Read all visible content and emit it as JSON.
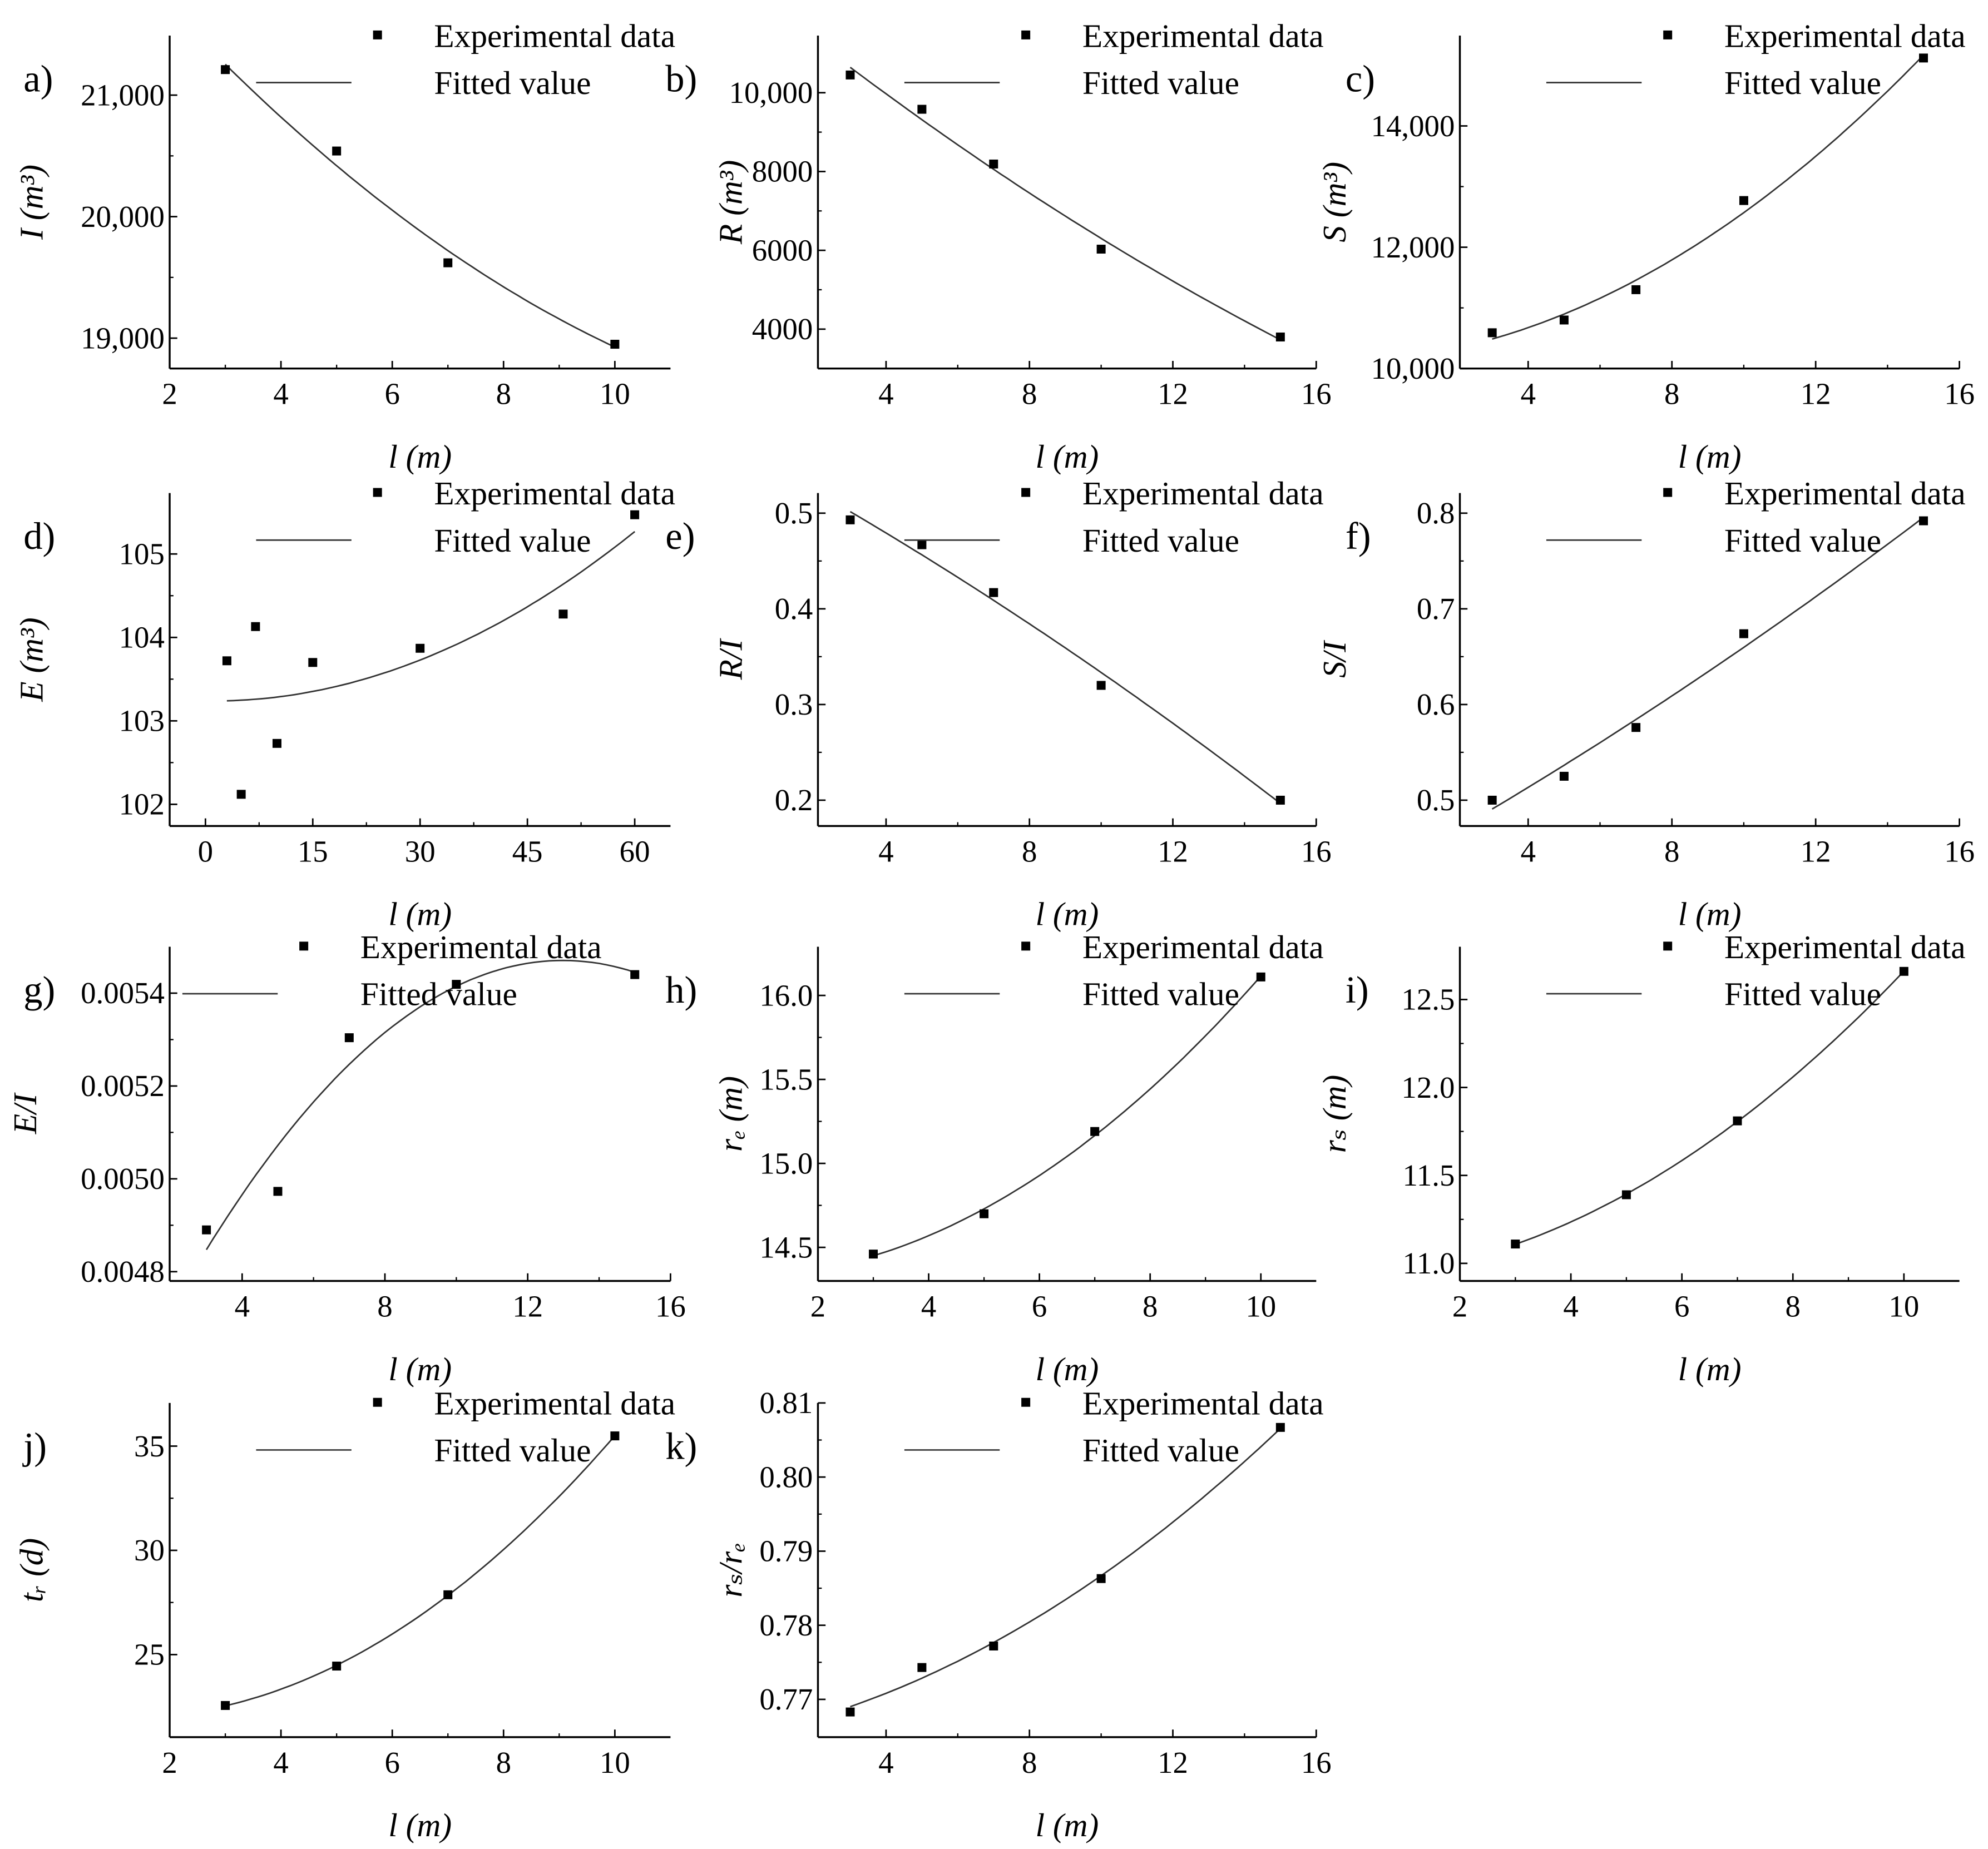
{
  "chart_data": [
    {
      "panel": "a)",
      "type": "scatter+fit",
      "xlabel": "l (m)",
      "ylabel": "I (m³)",
      "xlim": [
        2,
        11
      ],
      "ylim": [
        18750,
        21490
      ],
      "xticks": [
        2,
        4,
        6,
        8,
        10
      ],
      "yticks": [
        19000,
        20000,
        21000
      ],
      "ytick_labels": [
        "19,000",
        "20,000",
        "21,000"
      ],
      "x": [
        3,
        5,
        7,
        10
      ],
      "y": [
        21210,
        20540,
        19620,
        18950
      ],
      "legend": [
        "Experimental data",
        "Fitted value"
      ]
    },
    {
      "panel": "b)",
      "type": "scatter+fit",
      "xlabel": "l (m)",
      "ylabel": "R (m³)",
      "xlim": [
        2.1,
        16
      ],
      "ylim": [
        3000,
        11450
      ],
      "xticks": [
        4,
        8,
        12,
        16
      ],
      "yticks": [
        4000,
        6000,
        8000,
        10000
      ],
      "ytick_labels": [
        "4000",
        "6000",
        "8000",
        "10,000"
      ],
      "x": [
        3,
        5,
        7,
        10,
        15
      ],
      "y": [
        10450,
        9580,
        8190,
        6030,
        3800
      ],
      "legend": [
        "Experimental data",
        "Fitted value"
      ]
    },
    {
      "panel": "c)",
      "type": "scatter+fit",
      "xlabel": "l (m)",
      "ylabel": "S (m³)",
      "xlim": [
        2.1,
        16
      ],
      "ylim": [
        10000,
        15490
      ],
      "xticks": [
        4,
        8,
        12,
        16
      ],
      "yticks": [
        10000,
        12000,
        14000
      ],
      "ytick_labels": [
        "10,000",
        "12,000",
        "14,000"
      ],
      "x": [
        3,
        5,
        7,
        10,
        15
      ],
      "y": [
        10590,
        10800,
        11300,
        12770,
        15120
      ],
      "legend": [
        "Experimental data",
        "Fitted value"
      ]
    },
    {
      "panel": "d)",
      "type": "scatter+fit",
      "xlabel": "l (m)",
      "ylabel": "E (m³)",
      "xlim": [
        -5,
        65
      ],
      "ylim": [
        101.74,
        105.73
      ],
      "xticks": [
        0,
        15,
        30,
        45,
        60
      ],
      "yticks": [
        102,
        103,
        104,
        105
      ],
      "ytick_labels": [
        "102",
        "103",
        "104",
        "105"
      ],
      "x": [
        3,
        5,
        7,
        10,
        15,
        30,
        50,
        60
      ],
      "y": [
        103.72,
        102.12,
        104.13,
        102.73,
        103.7,
        103.87,
        104.28,
        105.47
      ],
      "legend": [
        "Experimental data",
        "Fitted value"
      ]
    },
    {
      "panel": "e)",
      "type": "scatter+fit",
      "xlabel": "l (m)",
      "ylabel": "R/I",
      "xlim": [
        2.1,
        16
      ],
      "ylim": [
        0.173,
        0.521
      ],
      "xticks": [
        4,
        8,
        12,
        16
      ],
      "yticks": [
        0.2,
        0.3,
        0.4,
        0.5
      ],
      "ytick_labels": [
        "0.2",
        "0.3",
        "0.4",
        "0.5"
      ],
      "x": [
        3,
        5,
        7,
        10,
        15
      ],
      "y": [
        0.493,
        0.467,
        0.417,
        0.32,
        0.2
      ],
      "legend": [
        "Experimental data",
        "Fitted value"
      ]
    },
    {
      "panel": "f)",
      "type": "scatter+fit",
      "xlabel": "l (m)",
      "ylabel": "S/I",
      "xlim": [
        2.1,
        16
      ],
      "ylim": [
        0.473,
        0.821
      ],
      "xticks": [
        4,
        8,
        12,
        16
      ],
      "yticks": [
        0.5,
        0.6,
        0.7,
        0.8
      ],
      "ytick_labels": [
        "0.5",
        "0.6",
        "0.7",
        "0.8"
      ],
      "x": [
        3,
        5,
        7,
        10,
        15
      ],
      "y": [
        0.5,
        0.525,
        0.576,
        0.674,
        0.792
      ],
      "legend": [
        "Experimental data",
        "Fitted value"
      ]
    },
    {
      "panel": "g)",
      "type": "scatter+fit",
      "xlabel": "l (m)",
      "ylabel": "E/I",
      "xlim": [
        1.97,
        16
      ],
      "ylim": [
        0.00478,
        0.0055
      ],
      "xticks": [
        4,
        8,
        12,
        16
      ],
      "yticks": [
        0.0048,
        0.005,
        0.0052,
        0.0054
      ],
      "ytick_labels": [
        "0.0048",
        "0.0050",
        "0.0052",
        "0.0054"
      ],
      "x": [
        3,
        5,
        7,
        10,
        15
      ],
      "y": [
        0.00489,
        0.004973,
        0.005304,
        0.005419,
        0.00544
      ],
      "legend": [
        "Experimental data",
        "Fitted value"
      ]
    },
    {
      "panel": "h)",
      "type": "scatter+fit",
      "xlabel": "l (m)",
      "ylabel": "rₑ (m)",
      "xlim": [
        2,
        11
      ],
      "ylim": [
        14.3,
        16.29
      ],
      "xticks": [
        2,
        4,
        6,
        8,
        10
      ],
      "yticks": [
        14.5,
        15,
        15.5,
        16
      ],
      "ytick_labels": [
        "14.5",
        "15.0",
        "15.5",
        "16.0"
      ],
      "x": [
        3,
        5,
        7,
        10
      ],
      "y": [
        14.46,
        14.7,
        15.19,
        16.11
      ],
      "legend": [
        "Experimental data",
        "Fitted value"
      ]
    },
    {
      "panel": "i)",
      "type": "scatter+fit",
      "xlabel": "l (m)",
      "ylabel": "rₛ (m)",
      "xlim": [
        2,
        11
      ],
      "ylim": [
        10.9,
        12.8
      ],
      "xticks": [
        2,
        4,
        6,
        8,
        10
      ],
      "yticks": [
        11,
        11.5,
        12,
        12.5
      ],
      "ytick_labels": [
        "11.0",
        "11.5",
        "12.0",
        "12.5"
      ],
      "x": [
        3,
        5,
        7,
        10
      ],
      "y": [
        11.11,
        11.39,
        11.81,
        12.66
      ],
      "legend": [
        "Experimental data",
        "Fitted value"
      ]
    },
    {
      "panel": "j)",
      "type": "scatter+fit",
      "xlabel": "l (m)",
      "ylabel": "tᵣ (d)",
      "xlim": [
        2,
        11
      ],
      "ylim": [
        21.04,
        37.07
      ],
      "xticks": [
        2,
        4,
        6,
        8,
        10
      ],
      "yticks": [
        25,
        30,
        35
      ],
      "ytick_labels": [
        "25",
        "30",
        "35"
      ],
      "x": [
        3,
        5,
        7,
        10
      ],
      "y": [
        22.56,
        24.45,
        27.87,
        35.49
      ],
      "legend": [
        "Experimental data",
        "Fitted value"
      ]
    },
    {
      "panel": "k)",
      "type": "scatter+fit",
      "xlabel": "l (m)",
      "ylabel": "rₛ/rₑ",
      "xlim": [
        2.1,
        16
      ],
      "ylim": [
        0.7649,
        0.81
      ],
      "xticks": [
        4,
        8,
        12,
        16
      ],
      "yticks": [
        0.77,
        0.78,
        0.79,
        0.8,
        0.81
      ],
      "ytick_labels": [
        "0.77",
        "0.78",
        "0.79",
        "0.80",
        "0.81"
      ],
      "x": [
        3,
        5,
        7,
        10,
        15
      ],
      "y": [
        0.7683,
        0.7743,
        0.7772,
        0.7863,
        0.8067
      ],
      "legend": [
        "Experimental data",
        "Fitted value"
      ]
    }
  ]
}
